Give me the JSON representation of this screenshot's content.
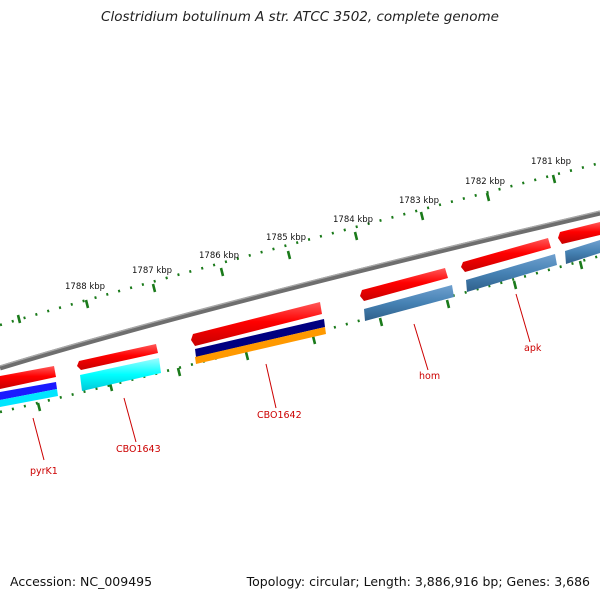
{
  "title": "Clostridium botulinum A str. ATCC 3502, complete genome",
  "footer": {
    "accession": "Accession: NC_009495",
    "summary": "Topology: circular; Length: 3,886,916 bp; Genes: 3,686"
  },
  "scale_labels": [
    "1781 kbp",
    "1782 kbp",
    "1783 kbp",
    "1784 kbp",
    "1785 kbp",
    "1786 kbp",
    "1787 kbp",
    "1788 kbp"
  ],
  "gene_labels": [
    "apk",
    "hom",
    "CBO1642",
    "CBO1643",
    "pyrK1"
  ],
  "colors": {
    "backbone": "#808080",
    "tick": "#1a7a1a",
    "gene_forward": "#ff0000",
    "cyan_feature": "#00ffff",
    "steelblue_feature": "#4682b4",
    "navy_feature": "#000080",
    "orange_feature": "#ff9900",
    "blue_feature": "#0000ff",
    "label": "#cc0000"
  }
}
